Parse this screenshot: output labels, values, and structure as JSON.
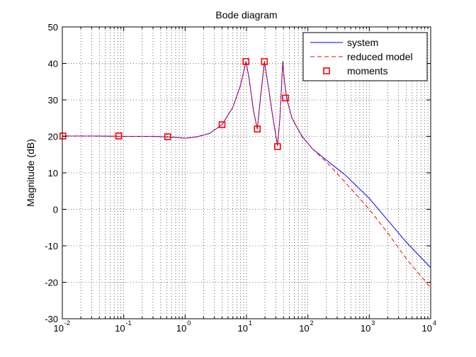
{
  "chart_data": {
    "type": "line",
    "title": "Bode diagram",
    "xlabel": "",
    "ylabel": "Magnitude (dB)",
    "xscale": "log",
    "xlim": [
      0.01,
      10000
    ],
    "ylim": [
      -30,
      50
    ],
    "yticks": [
      -30,
      -20,
      -10,
      0,
      10,
      20,
      30,
      40,
      50
    ],
    "xtick_labels": [
      {
        "base": "10",
        "exp": "-2"
      },
      {
        "base": "10",
        "exp": "-1"
      },
      {
        "base": "10",
        "exp": "0"
      },
      {
        "base": "10",
        "exp": "1"
      },
      {
        "base": "10",
        "exp": "2"
      },
      {
        "base": "10",
        "exp": "3"
      },
      {
        "base": "10",
        "exp": "4"
      }
    ],
    "grid": "dotted, major and minor",
    "legend_position": "top-right",
    "series": [
      {
        "name": "system",
        "style": "solid",
        "color": "#0000ff",
        "points": [
          [
            0.01,
            20.1
          ],
          [
            0.03,
            20.1
          ],
          [
            0.1,
            20.0
          ],
          [
            0.3,
            20.0
          ],
          [
            0.6,
            19.8
          ],
          [
            1.0,
            19.5
          ],
          [
            1.5,
            19.8
          ],
          [
            2.5,
            20.8
          ],
          [
            4.0,
            23.2
          ],
          [
            6.0,
            28.0
          ],
          [
            8.0,
            34.0
          ],
          [
            9.8,
            40.5
          ],
          [
            11.0,
            36.0
          ],
          [
            13.0,
            27.0
          ],
          [
            15.0,
            22.0
          ],
          [
            17.0,
            31.0
          ],
          [
            19.6,
            40.5
          ],
          [
            23.0,
            33.0
          ],
          [
            27.0,
            25.0
          ],
          [
            32.0,
            17.5
          ],
          [
            35.0,
            25.0
          ],
          [
            37.0,
            33.0
          ],
          [
            39.0,
            40.5
          ],
          [
            41.0,
            36.0
          ],
          [
            45.0,
            30.5
          ],
          [
            55.0,
            25.0
          ],
          [
            80.0,
            20.0
          ],
          [
            120.0,
            16.5
          ],
          [
            200.0,
            13.5
          ],
          [
            400.0,
            9.5
          ],
          [
            1000.0,
            3.0
          ],
          [
            2000.0,
            -3.0
          ],
          [
            4000.0,
            -9.0
          ],
          [
            10000.0,
            -16.0
          ]
        ]
      },
      {
        "name": "reduced model",
        "style": "dashed",
        "color": "#ff0000",
        "points": [
          [
            0.01,
            20.1
          ],
          [
            0.03,
            20.1
          ],
          [
            0.1,
            20.0
          ],
          [
            0.3,
            20.0
          ],
          [
            0.6,
            19.8
          ],
          [
            1.0,
            19.5
          ],
          [
            1.5,
            19.8
          ],
          [
            2.5,
            20.8
          ],
          [
            4.0,
            23.2
          ],
          [
            6.0,
            28.0
          ],
          [
            8.0,
            34.0
          ],
          [
            9.8,
            40.5
          ],
          [
            11.0,
            36.0
          ],
          [
            13.0,
            27.0
          ],
          [
            15.0,
            22.0
          ],
          [
            17.0,
            31.0
          ],
          [
            19.6,
            40.5
          ],
          [
            23.0,
            33.0
          ],
          [
            27.0,
            25.0
          ],
          [
            32.0,
            17.5
          ],
          [
            35.0,
            25.0
          ],
          [
            37.0,
            33.0
          ],
          [
            39.0,
            40.5
          ],
          [
            41.0,
            36.0
          ],
          [
            45.0,
            30.5
          ],
          [
            55.0,
            25.0
          ],
          [
            80.0,
            20.0
          ],
          [
            120.0,
            16.5
          ],
          [
            200.0,
            13.0
          ],
          [
            400.0,
            7.5
          ],
          [
            1000.0,
            0.0
          ],
          [
            2000.0,
            -6.5
          ],
          [
            4000.0,
            -13.5
          ],
          [
            10000.0,
            -21.5
          ]
        ]
      }
    ],
    "markers": {
      "name": "moments",
      "marker": "square",
      "color": "#ff0000",
      "points": [
        [
          0.0102,
          20.1
        ],
        [
          0.083,
          20.1
        ],
        [
          0.52,
          19.9
        ],
        [
          4.0,
          23.2
        ],
        [
          9.8,
          40.5
        ],
        [
          15.0,
          22.0
        ],
        [
          19.6,
          40.5
        ],
        [
          32.0,
          17.2
        ],
        [
          43.0,
          30.5
        ]
      ]
    },
    "legend": [
      "system",
      "reduced model",
      "moments"
    ]
  }
}
